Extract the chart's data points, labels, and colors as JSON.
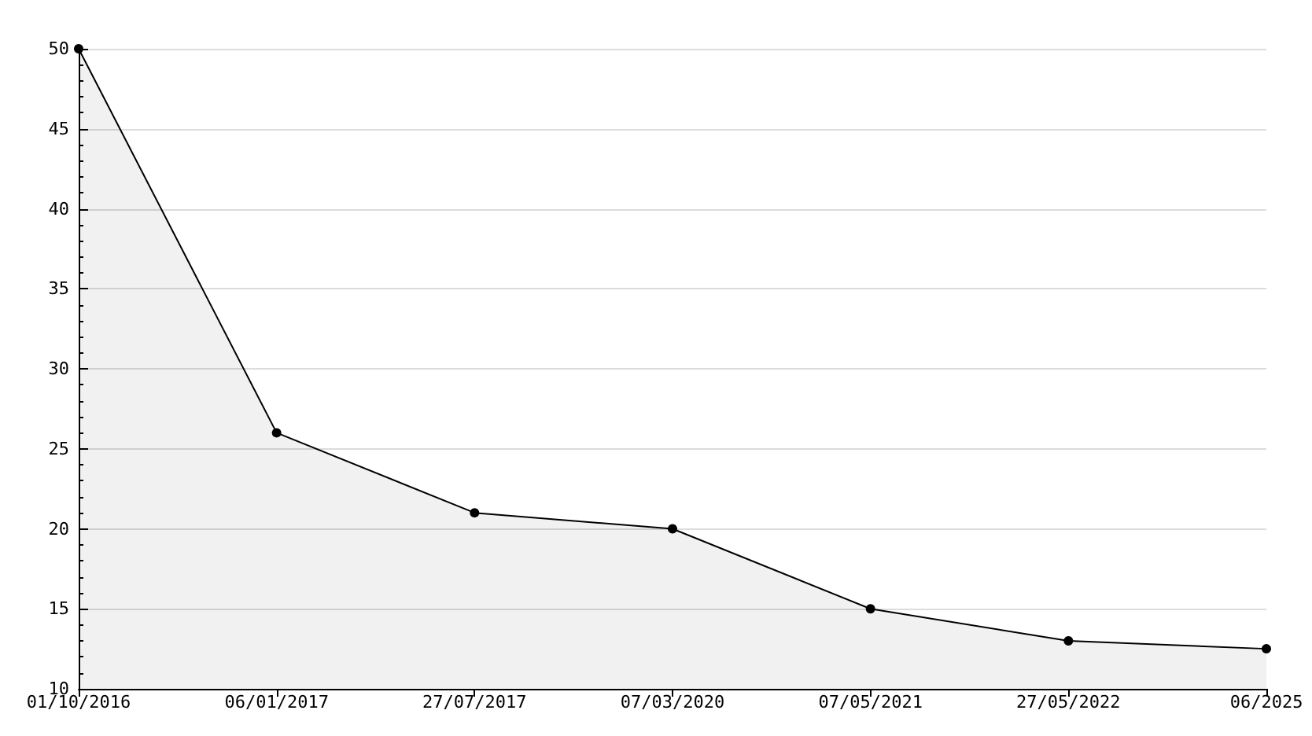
{
  "chart_data": {
    "type": "area",
    "categories": [
      "01/10/2016",
      "06/01/2017",
      "27/07/2017",
      "07/03/2020",
      "07/05/2021",
      "27/05/2022",
      "06/2025"
    ],
    "series": [
      {
        "color": "#000000",
        "values": [
          50,
          26,
          21,
          20,
          15,
          13,
          12.5
        ]
      }
    ],
    "ylim": [
      10,
      50
    ],
    "yticks": [
      10,
      15,
      20,
      25,
      30,
      35,
      40,
      45,
      50
    ],
    "grid": "y",
    "marker": "circle",
    "line_style": "solid"
  }
}
